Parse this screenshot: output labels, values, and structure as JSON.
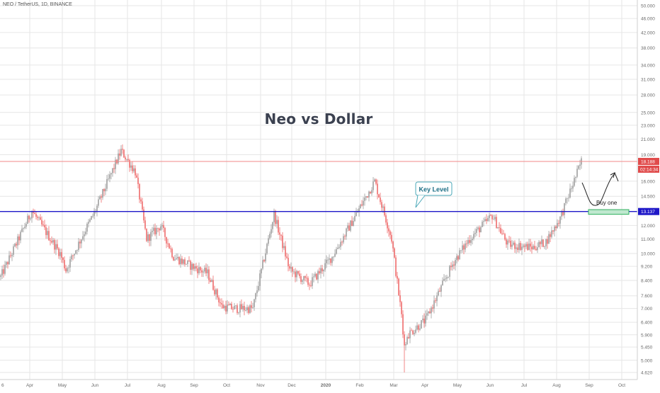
{
  "symbol": "NEO / TetherUS, 1D, BINANCE",
  "chart_data": {
    "type": "candlestick",
    "title": "Neo vs Dollar",
    "y_scale": "log",
    "ylim": [
      4.5,
      51.0
    ],
    "y_ticks": [
      "50.000",
      "46.000",
      "42.000",
      "38.000",
      "34.000",
      "31.000",
      "28.000",
      "25.000",
      "23.000",
      "21.000",
      "19.000",
      "18.188",
      "16.000",
      "14.500",
      "13.137",
      "12.000",
      "11.000",
      "10.000",
      "9.200",
      "8.400",
      "7.600",
      "7.000",
      "6.400",
      "5.900",
      "5.450",
      "5.000",
      "4.620"
    ],
    "x_ticks": [
      "6",
      "Apr",
      "May",
      "Jun",
      "Jul",
      "Aug",
      "Sep",
      "Oct",
      "Nov",
      "Dec",
      "2020",
      "Feb",
      "Mar",
      "Apr",
      "May",
      "Jun",
      "Jul",
      "Aug",
      "Sep",
      "Oct"
    ],
    "price_path": [
      [
        "Mar",
        8.6
      ],
      [
        "Apr",
        13.2
      ],
      [
        "May",
        10.0
      ],
      [
        "May",
        9.0
      ],
      [
        "Jun",
        11.5
      ],
      [
        "Jun",
        13.0
      ],
      [
        "Jul",
        19.5
      ],
      [
        "Jul",
        17.0
      ],
      [
        "Jul",
        11.0
      ],
      [
        "Aug",
        12.0
      ],
      [
        "Aug",
        9.8
      ],
      [
        "Sep",
        9.2
      ],
      [
        "Sep",
        8.8
      ],
      [
        "Oct",
        7.1
      ],
      [
        "Oct",
        7.0
      ],
      [
        "Nov",
        7.0
      ],
      [
        "Nov",
        12.9
      ],
      [
        "Dec",
        9.0
      ],
      [
        "Dec",
        8.2
      ],
      [
        "2020",
        9.8
      ],
      [
        "2020",
        11.5
      ],
      [
        "Feb",
        16.0
      ],
      [
        "Feb",
        12.5
      ],
      [
        "Mar",
        11.0
      ],
      [
        "Mar",
        5.8
      ],
      [
        "Apr",
        6.5
      ],
      [
        "May",
        9.5
      ],
      [
        "May",
        11.0
      ],
      [
        "Jun",
        12.8
      ],
      [
        "Jun",
        10.6
      ],
      [
        "Jul",
        10.4
      ],
      [
        "Jul",
        10.8
      ],
      [
        "Aug",
        12.6
      ],
      [
        "Aug",
        18.2
      ]
    ],
    "last_price": 18.188,
    "countdown": "02:14:34",
    "key_level": {
      "value": 13.137,
      "label": "Key Level",
      "color": "#1f18c8"
    },
    "current_price_line": {
      "value": 18.188,
      "color": "#f08a8a"
    },
    "buy_zone": {
      "label": "Buy one",
      "from": 12.9,
      "to": 13.3,
      "color": "#2eb05d"
    },
    "colors": {
      "up": "#9e9e9e",
      "down": "#ef6a6a",
      "axis_text": "#6b6b6b",
      "grid": "#e6e6e6",
      "badge_red": "#e04b4b",
      "badge_blue": "#1f18c8"
    }
  }
}
